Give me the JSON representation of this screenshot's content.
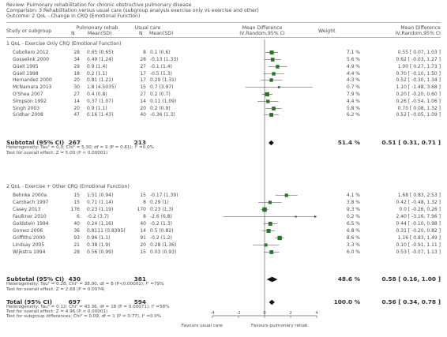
{
  "header": {
    "review": "Review:  Pulmonary rehabilitation for chronic obstructive pulmonary disease",
    "comparison": "Comparison:  3 Rehabilitation versus usual care (subgroup analysis exercise only vs exercise and other)",
    "outcome": "Outcome:  2 QoL - Change in CRQ (Emotional Function)"
  },
  "columns": {
    "study": "Study or subgroup",
    "exp_group": "Pulmonary rehab",
    "exp_n": "N",
    "exp_mean": "Mean(SD)",
    "ctl_group": "Usual care",
    "ctl_n": "N",
    "ctl_mean": "Mean(SD)",
    "md_title": "Mean Difference",
    "md_method": "IV,Random,95% CI",
    "weight": "Weight",
    "md2_title": "Mean Difference",
    "md2_method": "IV,Random,95% CI"
  },
  "chart_data": {
    "type": "forest",
    "x_range": [
      -4,
      4
    ],
    "ticks": [
      -4,
      -2,
      0,
      2,
      4
    ],
    "tick_labels": [
      "-4",
      "-2",
      "0",
      "2",
      "4"
    ],
    "left_label": "Favours usual care",
    "right_label": "Favours pulmonary rehab",
    "subgroups": [
      {
        "title": "1 QoL - Exercise Only CRQ (Emotional Function)",
        "studies": [
          {
            "name": "Cebollero 2012",
            "n1": "28",
            "m1": "0.65 (0.65)",
            "n2": "8",
            "m2": "0.1 (0.6)",
            "weight": "7.1 %",
            "ci": "0.55 [ 0.07, 1.03 ]",
            "md": 0.55,
            "lo": 0.07,
            "hi": 1.03
          },
          {
            "name": "Gosselink 2000",
            "n1": "34",
            "m1": "0.49 (1.24)",
            "n2": "28",
            "m2": "-0.13 (1.33)",
            "weight": "5.6 %",
            "ci": "0.62 [ -0.03, 1.27 ]",
            "md": 0.62,
            "lo": -0.03,
            "hi": 1.27
          },
          {
            "name": "Güell 1995",
            "n1": "29",
            "m1": "0.9 (1.4)",
            "n2": "27",
            "m2": "-0.1 (1.4)",
            "weight": "4.9 %",
            "ci": "1.00 [ 0.27, 1.73 ]",
            "md": 1.0,
            "lo": 0.27,
            "hi": 1.73
          },
          {
            "name": "Güell 1998",
            "n1": "18",
            "m1": "0.2 (1.1)",
            "n2": "17",
            "m2": "-0.5 (1.3)",
            "weight": "4.4 %",
            "ci": "0.70 [ -0.10, 1.50 ]",
            "md": 0.7,
            "lo": -0.1,
            "hi": 1.5
          },
          {
            "name": "Hernandez 2000",
            "n1": "20",
            "m1": "0.81 (1.21)",
            "n2": "17",
            "m2": "0.29 (1.31)",
            "weight": "4.3 %",
            "ci": "0.52 [ -0.30, 1.34 ]",
            "md": 0.52,
            "lo": -0.3,
            "hi": 1.34
          },
          {
            "name": "McNamara 2013",
            "n1": "30",
            "m1": "1.8 (4.5035)",
            "n2": "15",
            "m2": "0.7 (3.97)",
            "weight": "0.7 %",
            "ci": "1.10 [ -1.48, 3.68 ]",
            "md": 1.1,
            "lo": -1.48,
            "hi": 3.68
          },
          {
            "name": "O'Shea 2007",
            "n1": "27",
            "m1": "0.4 (0.8)",
            "n2": "27",
            "m2": "0.2 (0.7)",
            "weight": "7.9 %",
            "ci": "0.20 [ -0.20, 0.60 ]",
            "md": 0.2,
            "lo": -0.2,
            "hi": 0.6
          },
          {
            "name": "Simpson 1992",
            "n1": "14",
            "m1": "0.37 (1.07)",
            "n2": "14",
            "m2": "0.11 (1.09)",
            "weight": "4.4 %",
            "ci": "0.26 [ -0.54, 1.06 ]",
            "md": 0.26,
            "lo": -0.54,
            "hi": 1.06
          },
          {
            "name": "Singh 2003",
            "n1": "20",
            "m1": "0.9 (1.1)",
            "n2": "20",
            "m2": "0.2 (0.9)",
            "weight": "5.8 %",
            "ci": "0.70 [ 0.08, 1.32 ]",
            "md": 0.7,
            "lo": 0.08,
            "hi": 1.32
          },
          {
            "name": "Sridhar 2008",
            "n1": "47",
            "m1": "0.16 (1.43)",
            "n2": "40",
            "m2": "-0.36 (1.3)",
            "weight": "6.2 %",
            "ci": "0.52 [ -0.05, 1.09 ]",
            "md": 0.52,
            "lo": -0.05,
            "hi": 1.09
          }
        ],
        "subtotal": {
          "label": "Subtotal (95% CI)",
          "n1": "267",
          "n2": "213",
          "weight": "51.4 %",
          "ci": "0.51 [ 0.31, 0.71 ]",
          "md": 0.51,
          "lo": 0.31,
          "hi": 0.71
        },
        "heterogeneity": "Heterogeneity: Tau² = 0.0; Chi² = 5.30, df = 9 (P = 0.81); I² =0.0%",
        "effect_test": "Test for overall effect: Z = 5.00 (P < 0.00001)"
      },
      {
        "title": "2 QoL - Exercise + Other CRQ (Emotional Function)",
        "studies": [
          {
            "name": "Behnke 2000a",
            "n1": "15",
            "m1": "1.51 (0.94)",
            "n2": "15",
            "m2": "-0.17 (1.39)",
            "weight": "4.1 %",
            "ci": "1.68 [ 0.83, 2.53 ]",
            "md": 1.68,
            "lo": 0.83,
            "hi": 2.53
          },
          {
            "name": "Cambach 1997",
            "n1": "15",
            "m1": "0.71 (1.14)",
            "n2": "8",
            "m2": "0.29 (1)",
            "weight": "3.8 %",
            "ci": "0.42 [ -0.48, 1.32 ]",
            "md": 0.42,
            "lo": -0.48,
            "hi": 1.32
          },
          {
            "name": "Casey 2013",
            "n1": "176",
            "m1": "0.23 (1.19)",
            "n2": "170",
            "m2": "0.23 (1.3)",
            "weight": "9.3 %",
            "ci": "0.0 [ -0.26, 0.26 ]",
            "md": 0.0,
            "lo": -0.26,
            "hi": 0.26
          },
          {
            "name": "Faulkner 2010",
            "n1": "6",
            "m1": "-0.2 (3.7)",
            "n2": "8",
            "m2": "-2.6 (6.8)",
            "weight": "0.2 %",
            "ci": "2.40 [ -3.16, 7.96 ]",
            "md": 2.4,
            "lo": -3.16,
            "hi": 7.96
          },
          {
            "name": "Goldstein 1994",
            "n1": "40",
            "m1": "0.24 (1.16)",
            "n2": "40",
            "m2": "-0.2 (1.3)",
            "weight": "6.5 %",
            "ci": "0.44 [ -0.10, 0.98 ]",
            "md": 0.44,
            "lo": -0.1,
            "hi": 0.98
          },
          {
            "name": "Gomez 2006",
            "n1": "36",
            "m1": "0.8111 (0.8395)",
            "n2": "14",
            "m2": "0.5 (0.82)",
            "weight": "6.8 %",
            "ci": "0.31 [ -0.20, 0.82 ]",
            "md": 0.31,
            "lo": -0.2,
            "hi": 0.82
          },
          {
            "name": "Griffiths 2000",
            "n1": "93",
            "m1": "0.96 (1.1)",
            "n2": "91",
            "m2": "-0.2 (1.2)",
            "weight": "8.6 %",
            "ci": "1.16 [ 0.83, 1.49 ]",
            "md": 1.16,
            "lo": 0.83,
            "hi": 1.49
          },
          {
            "name": "Lindsay 2005",
            "n1": "21",
            "m1": "0.38 (1.9)",
            "n2": "20",
            "m2": "0.28 (1.36)",
            "weight": "3.3 %",
            "ci": "0.10 [ -0.91, 1.11 ]",
            "md": 0.1,
            "lo": -0.91,
            "hi": 1.11
          },
          {
            "name": "Wijkstra 1994",
            "n1": "28",
            "m1": "0.56 (0.99)",
            "n2": "15",
            "m2": "0.03 (0.93)",
            "weight": "6.0 %",
            "ci": "0.53 [ -0.07, 1.13 ]",
            "md": 0.53,
            "lo": -0.07,
            "hi": 1.13
          }
        ],
        "subtotal": {
          "label": "Subtotal (95% CI)",
          "n1": "430",
          "n2": "381",
          "weight": "48.6 %",
          "ci": "0.58 [ 0.16, 1.00 ]",
          "md": 0.58,
          "lo": 0.16,
          "hi": 1.0
        },
        "heterogeneity": "Heterogeneity: Tau² = 0.28; Chi² = 38.00, df = 8 (P<0.00001); I² =79%",
        "effect_test": "Test for overall effect: Z = 2.68 (P = 0.0074)"
      }
    ],
    "total": {
      "label": "Total (95% CI)",
      "n1": "697",
      "n2": "594",
      "weight": "100.0 %",
      "ci": "0.56 [ 0.34, 0.78 ]",
      "md": 0.56,
      "lo": 0.34,
      "hi": 0.78
    },
    "total_heterogeneity": "Heterogeneity: Tau² = 0.12; Chi² = 43.36, df = 18 (P = 0.00071); I² =58%",
    "total_effect_test": "Test for overall effect: Z = 4.96 (P < 0.00001)",
    "subgroup_test": "Test for subgroup differences: Chi² = 0.09, df = 1 (P = 0.77), I² =0.0%"
  }
}
